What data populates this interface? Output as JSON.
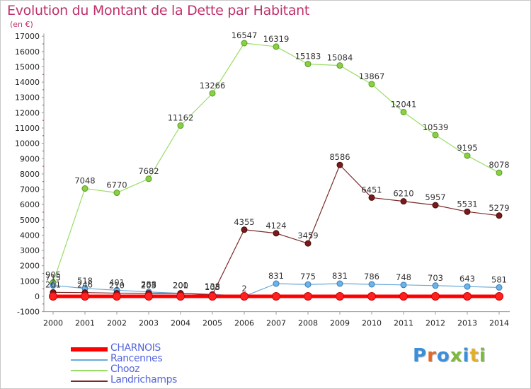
{
  "header": {
    "title": "Evolution du Montant de la Dette par Habitant",
    "subtitle": "(en €)"
  },
  "logo": {
    "text": "Proxiti",
    "colors": [
      "#3b8ed8",
      "#e06a2c",
      "#3b8ed8",
      "#7cba3c",
      "#3b8ed8",
      "#e0b02c",
      "#7cba3c"
    ]
  },
  "chart_data": {
    "type": "line",
    "title": "Evolution du Montant de la Dette par Habitant",
    "subtitle": "(en €)",
    "x": [
      2000,
      2001,
      2002,
      2003,
      2004,
      2005,
      2006,
      2007,
      2008,
      2009,
      2010,
      2011,
      2012,
      2013,
      2014
    ],
    "ylim": [
      -1000,
      17000
    ],
    "yticks": [
      -1000,
      0,
      1000,
      2000,
      3000,
      4000,
      5000,
      6000,
      7000,
      8000,
      9000,
      10000,
      11000,
      12000,
      13000,
      14000,
      15000,
      16000,
      17000
    ],
    "grid": false,
    "legend_position": "bottom-left",
    "series": [
      {
        "name": "CHARNOIS",
        "color": "#ff0000",
        "line_width": 5,
        "marker_fill": "#ff2020",
        "marker_stroke": "#cc0000",
        "show_labels": false,
        "values": [
          0,
          0,
          0,
          0,
          0,
          0,
          0,
          0,
          0,
          0,
          0,
          0,
          0,
          0,
          0
        ]
      },
      {
        "name": "Rancennes",
        "color": "#6aaad8",
        "line_width": 1.2,
        "marker_fill": "#6ab4e8",
        "marker_stroke": "#3a7ab8",
        "show_labels": true,
        "values": [
          715,
          518,
          401,
          288,
          200,
          138,
          2,
          831,
          775,
          831,
          786,
          748,
          703,
          643,
          581
        ]
      },
      {
        "name": "Chooz",
        "color": "#99dd66",
        "line_width": 1.2,
        "marker_fill": "#88d044",
        "marker_stroke": "#5a9a22",
        "show_labels": true,
        "values": [
          905,
          7048,
          6770,
          7682,
          11162,
          13266,
          16547,
          16319,
          15183,
          15084,
          13867,
          12041,
          10539,
          9195,
          8078
        ]
      },
      {
        "name": "Landrichamps",
        "color": "#7a2a2a",
        "line_width": 1.2,
        "marker_fill": "#7a1a1a",
        "marker_stroke": "#4a0a0a",
        "show_labels": true,
        "values": [
          261,
          246,
          210,
          203,
          201,
          103,
          4355,
          4124,
          3459,
          8586,
          6451,
          6210,
          5957,
          5531,
          5279
        ]
      }
    ]
  }
}
